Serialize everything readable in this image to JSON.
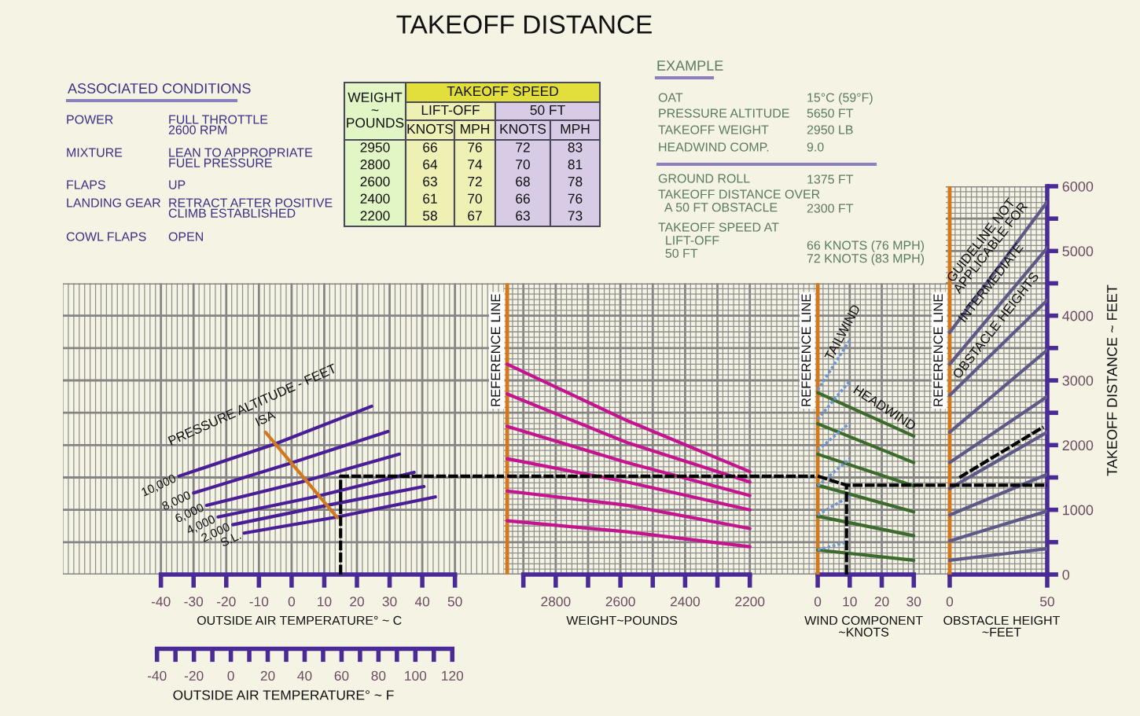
{
  "chart_data": [
    {
      "type": "other",
      "title": "ASSOCIATED CONDITIONS",
      "annotations": [
        "POWER",
        "FULL THROTTLE\n2600 RPM",
        "MIXTURE",
        "LEAN TO APPROPRIATE\nFUEL PRESSURE",
        "FLAPS",
        "UP",
        "LANDING GEAR",
        "RETRACT AFTER POSITIVE\nCLIMB ESTABLISHED",
        "COWL FLAPS",
        "OPEN"
      ]
    },
    {
      "type": "other",
      "annotations": [
        "TAKEOFF SPEED",
        "LIFT-OFF",
        "50 FT",
        "WEIGHT\n~\nPOUNDS",
        "KNOTS",
        "MPH",
        "KNOTS",
        "MPH",
        "2950",
        "66",
        "76",
        "72",
        "83",
        "2800",
        "64",
        "74",
        "70",
        "81",
        "2600",
        "63",
        "72",
        "68",
        "78",
        "2400",
        "61",
        "70",
        "66",
        "76",
        "2200",
        "58",
        "67",
        "63",
        "73"
      ]
    },
    {
      "type": "other",
      "title": "EXAMPLE",
      "annotations": [
        "OAT",
        "15°C (59°F)",
        "PRESSURE ALTITUDE",
        "5650 FT",
        "TAKEOFF WEIGHT",
        "2950 LB",
        "HEADWIND COMP.",
        "9.0",
        "GROUND ROLL",
        "1375 FT",
        "TAKEOFF DISTANCE OVER\n  A 50 FT OBSTACLE",
        "2300 FT",
        "TAKEOFF SPEED AT\n  LIFT-OFF\n  50 FT",
        "66 KNOTS (76 MPH)\n72 KNOTS (83 MPH)"
      ]
    },
    {
      "type": "line",
      "title": "TAKEOFF DISTANCE",
      "xlabel": "OUTSIDE AIR TEMPERATURE° ~ C",
      "x2label": "OUTSIDE AIR TEMPERATURE° ~ F",
      "xlim": [
        -70,
        65
      ],
      "xticks": [
        -40,
        -30,
        -20,
        -10,
        0,
        10,
        20,
        30,
        40,
        50
      ],
      "x2lim": [
        -91,
        148
      ],
      "x2ticks": [
        -40,
        {
          "value": -30,
          "label": null
        },
        -20,
        {
          "value": -10,
          "label": null
        },
        0,
        {
          "value": 10,
          "label": null
        },
        20,
        {
          "value": 30,
          "label": null
        },
        40,
        {
          "value": 50,
          "label": null
        },
        60,
        {
          "value": 70,
          "label": null
        },
        80,
        {
          "value": 90,
          "label": null
        },
        100,
        {
          "value": 110,
          "label": null
        },
        120
      ],
      "ylim": [
        0,
        4500
      ],
      "yticks": [
        0,
        500,
        1000,
        1500,
        2000,
        2500,
        3000,
        3500,
        4000,
        4500
      ],
      "tick_labels": "x",
      "grid": true,
      "annotations": [
        "PRESSURE ALTITUDE - FEET"
      ],
      "series": [
        {
          "name": "10,000",
          "color": "#4a1e96",
          "x": [
            -34.5,
            -5,
            24.5
          ],
          "values": [
            1520,
            2020,
            2600
          ]
        },
        {
          "name": "8,000",
          "color": "#4a1e96",
          "x": [
            -30,
            -1,
            29.5
          ],
          "values": [
            1260,
            1710,
            2210
          ]
        },
        {
          "name": "6,000",
          "color": "#4a1e96",
          "x": [
            -26,
            3,
            33
          ],
          "values": [
            1070,
            1430,
            1860
          ]
        },
        {
          "name": "4,000",
          "color": "#4a1e96",
          "x": [
            -22.5,
            7,
            37.5
          ],
          "values": [
            890,
            1200,
            1580
          ]
        },
        {
          "name": "2,000",
          "color": "#4a1e96",
          "x": [
            -18,
            11,
            40.5
          ],
          "values": [
            770,
            1070,
            1360
          ]
        },
        {
          "name": "S.L.",
          "color": "#4a1e96",
          "x": [
            -14.5,
            14,
            44
          ],
          "values": [
            640,
            890,
            1200
          ]
        },
        {
          "name": "ISA",
          "color": "#d2781e",
          "x": [
            -8,
            14
          ],
          "values": [
            2200,
            880
          ]
        },
        {
          "color": "#000000",
          "line_style": "dashed",
          "x": [
            15,
            15,
            65
          ],
          "values": [
            0,
            1520,
            1520
          ]
        }
      ]
    },
    {
      "type": "line",
      "xlabel": "WEIGHT~POUNDS",
      "xlim": [
        2960,
        2000
      ],
      "xticks": [
        {
          "value": 2900,
          "label": null
        },
        2800,
        {
          "value": 2700,
          "label": null
        },
        2600,
        {
          "value": 2500,
          "label": null
        },
        2400,
        {
          "value": 2300,
          "label": null
        },
        2200
      ],
      "ylim": [
        0,
        4500
      ],
      "yticks": [
        0,
        500,
        1000,
        1500,
        2000,
        2500,
        3000,
        3500,
        4000,
        4500
      ],
      "tick_labels": "x",
      "grid": true,
      "ref_lines": [
        {
          "axis": "x",
          "value": 2950,
          "label": "REFERENCE LINE",
          "color": "#d2781e"
        }
      ],
      "x": [
        2950,
        2580,
        2200
      ],
      "series": [
        {
          "color": "#c4158f",
          "values": [
            3250,
            2380,
            1590
          ]
        },
        {
          "color": "#c4158f",
          "values": [
            2790,
            2040,
            1430
          ]
        },
        {
          "color": "#c4158f",
          "values": [
            2290,
            1730,
            1220
          ]
        },
        {
          "color": "#c4158f",
          "values": [
            1790,
            1430,
            1000
          ]
        },
        {
          "color": "#c4158f",
          "values": [
            1290,
            1070,
            710
          ]
        },
        {
          "color": "#c4158f",
          "values": [
            830,
            660,
            430
          ]
        },
        {
          "color": "#000000",
          "line_style": "dashed",
          "x": [
            2950,
            2000
          ],
          "values": [
            1520,
            1520
          ]
        }
      ]
    },
    {
      "type": "line",
      "xlabel": "WIND COMPONENT\n~KNOTS",
      "xlim": [
        -1,
        40
      ],
      "xticks": [
        0,
        10,
        20,
        30
      ],
      "ylim": [
        0,
        4500
      ],
      "yticks": [
        0,
        500,
        1000,
        1500,
        2000,
        2500,
        3000,
        3500,
        4000,
        4500
      ],
      "tick_labels": "x",
      "grid": true,
      "ref_lines": [
        {
          "axis": "x",
          "value": 0,
          "label": "REFERENCE LINE",
          "color": "#d2781e"
        }
      ],
      "annotations": [
        "TAILWIND",
        "HEADWIND"
      ],
      "series": [
        {
          "color": "#3d6b2e",
          "x": [
            0,
            30
          ],
          "values": [
            2810,
            2140
          ]
        },
        {
          "color": "#3d6b2e",
          "x": [
            0,
            30
          ],
          "values": [
            2330,
            1730
          ]
        },
        {
          "color": "#3d6b2e",
          "x": [
            0,
            30
          ],
          "values": [
            1860,
            1370
          ]
        },
        {
          "color": "#3d6b2e",
          "x": [
            0,
            30
          ],
          "values": [
            1380,
            970
          ]
        },
        {
          "color": "#3d6b2e",
          "x": [
            0,
            30
          ],
          "values": [
            900,
            600
          ]
        },
        {
          "color": "#3d6b2e",
          "x": [
            0,
            30
          ],
          "values": [
            380,
            220
          ]
        },
        {
          "color": "#6e95d2",
          "line_style": "dotted",
          "x": [
            0,
            10
          ],
          "values": [
            2850,
            3620
          ]
        },
        {
          "color": "#6e95d2",
          "line_style": "dotted",
          "x": [
            0,
            10
          ],
          "values": [
            2400,
            2990
          ]
        },
        {
          "color": "#6e95d2",
          "line_style": "dotted",
          "x": [
            0,
            10
          ],
          "values": [
            1920,
            2340
          ]
        },
        {
          "color": "#6e95d2",
          "line_style": "dotted",
          "x": [
            0,
            10
          ],
          "values": [
            1370,
            1790
          ]
        },
        {
          "color": "#6e95d2",
          "line_style": "dotted",
          "x": [
            0,
            10
          ],
          "values": [
            920,
            1210
          ]
        },
        {
          "color": "#6e95d2",
          "line_style": "dotted",
          "x": [
            0,
            9
          ],
          "values": [
            380,
            500
          ]
        },
        {
          "color": "#000000",
          "line_style": "dashed",
          "x": [
            0,
            9,
            40
          ],
          "values": [
            1520,
            1380,
            1380
          ]
        },
        {
          "color": "#000000",
          "line_style": "dashed",
          "x": [
            9,
            9
          ],
          "values": [
            0,
            1380
          ]
        }
      ]
    },
    {
      "type": "line",
      "xlabel": "OBSTACLE HEIGHT\n~FEET",
      "ylabel": "TAKEOFF DISTANCE ~ FEET",
      "xlim": [
        -2,
        50
      ],
      "xticks": [
        0,
        50
      ],
      "ylim": [
        0,
        6000
      ],
      "yticks": [
        0,
        {
          "value": 500,
          "label": null
        },
        1000,
        {
          "value": 1500,
          "label": null
        },
        2000,
        {
          "value": 2500,
          "label": null
        },
        3000,
        {
          "value": 3500,
          "label": null
        },
        4000,
        {
          "value": 4500,
          "label": null
        },
        5000,
        {
          "value": 5500,
          "label": null
        },
        6000
      ],
      "grid": true,
      "ref_lines": [
        {
          "axis": "x",
          "value": 0,
          "label": "REFERENCE LINE",
          "color": "#d2781e"
        }
      ],
      "annotations": [
        "GUIDELINE NOT\nAPPLICABLE FOR",
        "INTERMEDIATE",
        "OBSTACLE HEIGHTS"
      ],
      "x": [
        0,
        50
      ],
      "series": [
        {
          "color": "#5e5a88",
          "values": [
            3740,
            5760
          ]
        },
        {
          "color": "#5e5a88",
          "values": [
            3250,
            5050
          ]
        },
        {
          "color": "#5e5a88",
          "values": [
            2770,
            4240
          ]
        },
        {
          "color": "#5e5a88",
          "values": [
            2200,
            3470
          ]
        },
        {
          "color": "#5e5a88",
          "values": [
            1730,
            2750
          ]
        },
        {
          "color": "#5e5a88",
          "values": [
            1330,
            2200
          ]
        },
        {
          "color": "#5e5a88",
          "values": [
            920,
            1550
          ]
        },
        {
          "color": "#5e5a88",
          "values": [
            520,
            980
          ]
        },
        {
          "color": "#5e5a88",
          "values": [
            220,
            400
          ]
        },
        {
          "color": "#000000",
          "line_style": "dashed",
          "x": [
            0,
            50
          ],
          "values": [
            1380,
            1380
          ]
        },
        {
          "color": "#000000",
          "line_style": "dashed",
          "x": [
            5,
            48
          ],
          "values": [
            1500,
            2280
          ]
        }
      ]
    }
  ]
}
